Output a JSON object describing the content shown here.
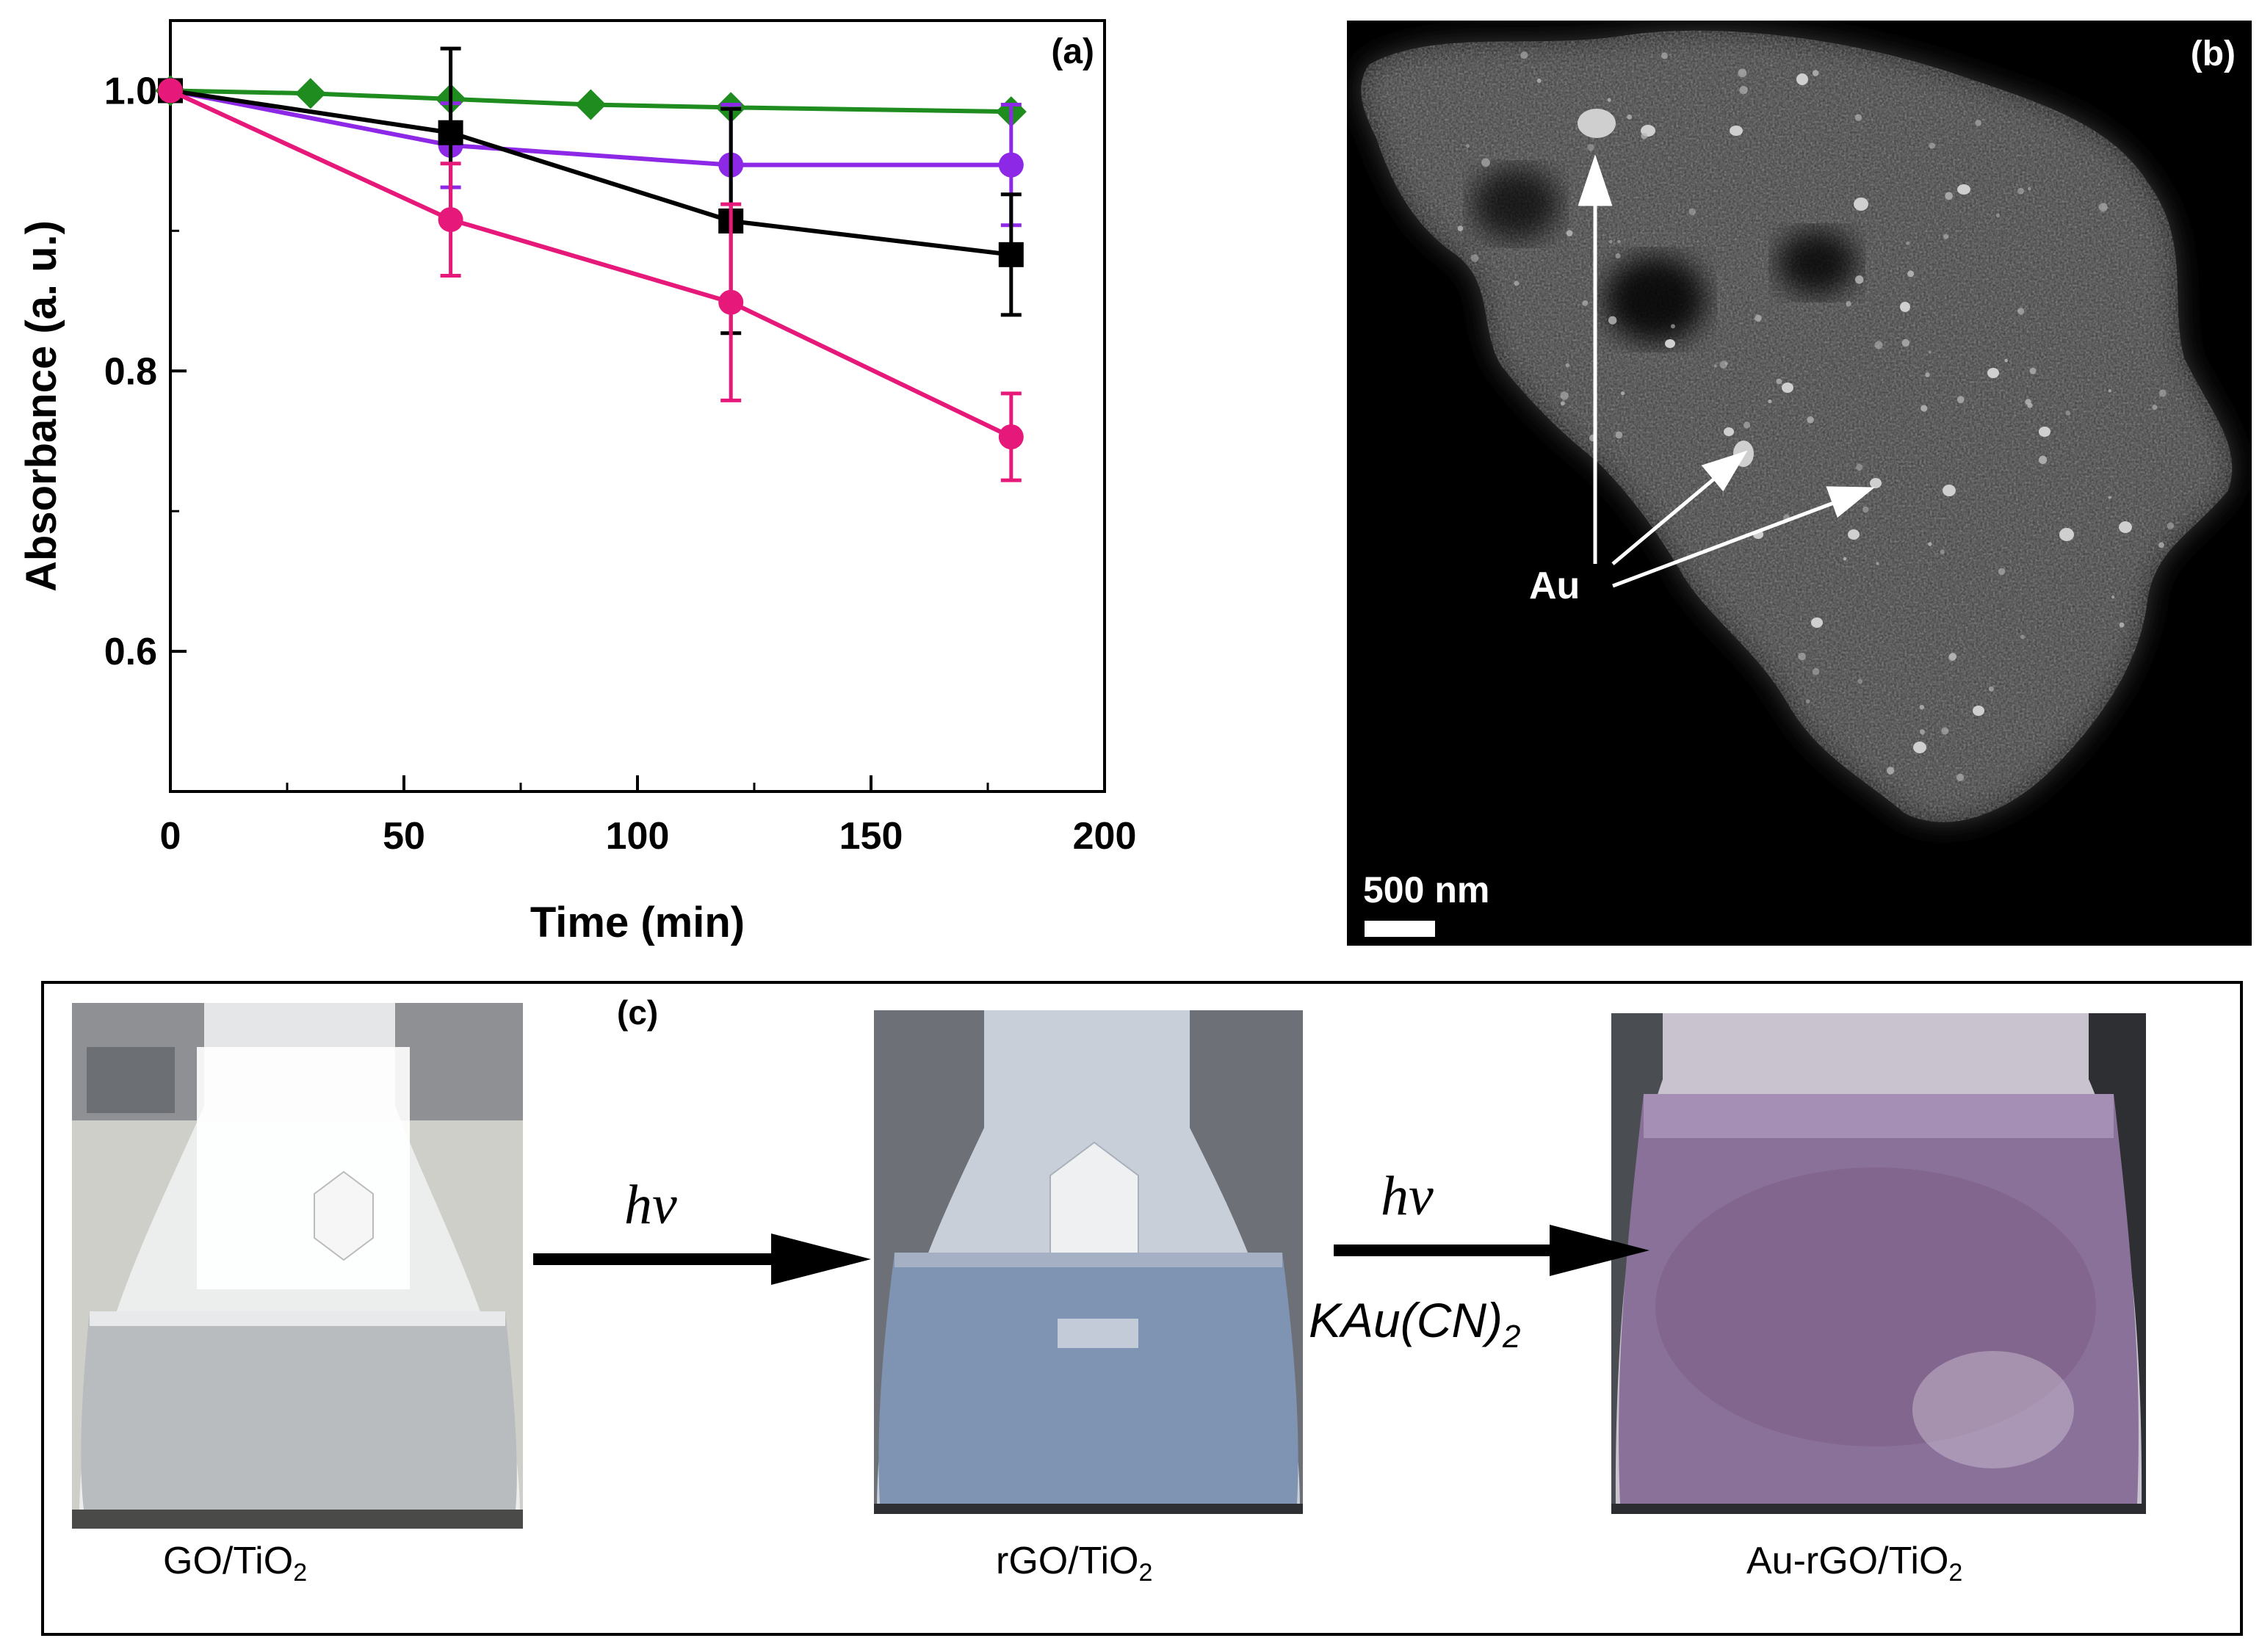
{
  "chart_data": {
    "type": "line",
    "panel_label": "(a)",
    "xlabel": "Time (min)",
    "ylabel": "Absorbance (a. u.)",
    "xlim": [
      0,
      200
    ],
    "ylim": [
      0.5,
      1.05
    ],
    "x_ticks": [
      0,
      50,
      100,
      150,
      200
    ],
    "y_ticks": [
      0.6,
      0.8,
      1.0
    ],
    "x_tick_labels": [
      "0",
      "50",
      "100",
      "150",
      "200"
    ],
    "y_tick_labels": [
      "0.6",
      "0.8",
      "1.0"
    ],
    "grid": false,
    "series": [
      {
        "color": "#1e8c1e",
        "marker": "diamond",
        "x": [
          0,
          30,
          60,
          90,
          120,
          180
        ],
        "y": [
          1.0,
          0.998,
          0.994,
          0.99,
          0.988,
          0.985
        ],
        "err": [
          0,
          0,
          0,
          0,
          0,
          0
        ]
      },
      {
        "color": "#8c28e6",
        "marker": "circle",
        "x": [
          0,
          60,
          120,
          180
        ],
        "y": [
          1.0,
          0.961,
          0.947,
          0.947
        ],
        "err": [
          0,
          0.03,
          0.043,
          0.043
        ]
      },
      {
        "color": "#000000",
        "marker": "square",
        "x": [
          0,
          60,
          120,
          180
        ],
        "y": [
          1.0,
          0.97,
          0.907,
          0.883
        ],
        "err": [
          0,
          0.06,
          0.08,
          0.043
        ]
      },
      {
        "color": "#e6197a",
        "marker": "circle",
        "x": [
          0,
          60,
          120,
          180
        ],
        "y": [
          1.0,
          0.908,
          0.849,
          0.753
        ],
        "err": [
          0,
          0.04,
          0.07,
          0.031
        ]
      }
    ]
  },
  "panel_b": {
    "label": "(b)",
    "annotation": "Au",
    "scale_bar": "500 nm"
  },
  "panel_c": {
    "label": "(c)",
    "arrow1_label": "hν",
    "arrow2_label": "hν",
    "arrow2_reagent_main": "KAu(CN)",
    "arrow2_reagent_sub": "2",
    "flasks": [
      {
        "cap_main": "GO/TiO",
        "cap_sub": "2",
        "liquid": "#b9bcbe",
        "top": "#e8e9ea"
      },
      {
        "cap_main": "rGO/TiO",
        "cap_sub": "2",
        "liquid": "#7f93b3",
        "top": "#a6b0c4"
      },
      {
        "cap_main": "Au-rGO/TiO",
        "cap_sub": "2",
        "liquid": "#8a7199",
        "top": "#a58fb5"
      }
    ]
  }
}
